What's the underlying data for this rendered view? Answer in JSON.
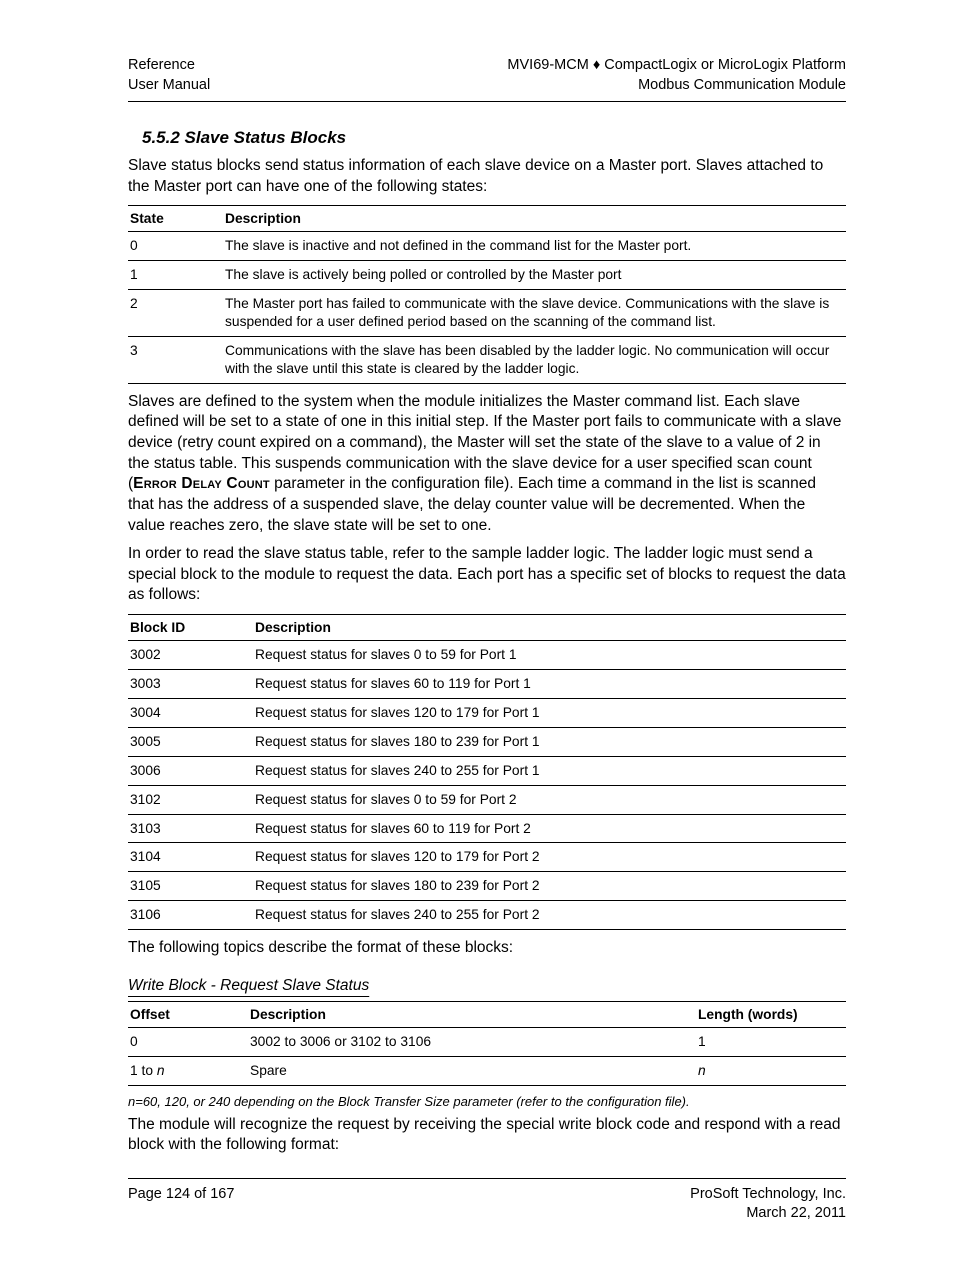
{
  "header": {
    "left_line1": "Reference",
    "left_line2": "User Manual",
    "right_line1": "MVI69-MCM ♦ CompactLogix or MicroLogix Platform",
    "right_line2": "Modbus Communication Module"
  },
  "section_title": "5.5.2  Slave Status Blocks",
  "intro": "Slave status blocks send status information of each slave device on a Master port. Slaves attached to the Master port can have one of the following states:",
  "state_table": {
    "columns": [
      "State",
      "Description"
    ],
    "rows": [
      [
        "0",
        "The slave is inactive and not defined in the command list for the Master port."
      ],
      [
        "1",
        "The slave is actively being polled or controlled by the Master port"
      ],
      [
        "2",
        "The Master port has failed to communicate with the slave device. Communications with the slave is suspended for a user defined period based on the scanning of the command list."
      ],
      [
        "3",
        "Communications with the slave has been disabled by the ladder logic. No communication will occur with the slave until this state is cleared by the ladder logic."
      ]
    ]
  },
  "para1_pre": "Slaves are defined to the system when the module initializes the Master command list. Each slave defined will be set to a state of one in this initial step. If the Master port fails to communicate with a slave device (retry count expired on a command), the Master will set the state of the slave to a value of 2 in the status table. This suspends communication with the slave device for a user specified scan count (",
  "para1_caps": "Error Delay Count",
  "para1_post": " parameter in the configuration file). Each time a command in the list is scanned that has the address of a suspended slave, the delay counter value will be decremented. When the value reaches zero, the slave state will be set to one.",
  "para2": "In order to read the slave status table, refer to the sample ladder logic. The ladder logic must send a special block to the module to request the data. Each port has a specific set of blocks to request the data as follows:",
  "block_table": {
    "columns": [
      "Block ID",
      "Description"
    ],
    "rows": [
      [
        "3002",
        "Request status for slaves 0 to 59 for Port 1"
      ],
      [
        "3003",
        "Request status for slaves 60 to 119 for Port 1"
      ],
      [
        "3004",
        "Request status for slaves 120 to 179 for Port 1"
      ],
      [
        "3005",
        "Request status for slaves 180 to 239 for Port 1"
      ],
      [
        "3006",
        "Request status for slaves 240 to 255 for Port 1"
      ],
      [
        "3102",
        "Request status for slaves 0 to 59 for Port 2"
      ],
      [
        "3103",
        "Request status for slaves 60 to 119 for Port 2"
      ],
      [
        "3104",
        "Request status for slaves 120 to 179 for Port 2"
      ],
      [
        "3105",
        "Request status for slaves 180 to 239 for Port 2"
      ],
      [
        "3106",
        "Request status for slaves 240 to 255 for Port 2"
      ]
    ]
  },
  "para3": "The following topics describe the format of these blocks:",
  "sub_heading": "Write Block - Request Slave Status",
  "offset_table": {
    "columns": [
      "Offset",
      "Description",
      "Length (words)"
    ],
    "rows": [
      [
        "0",
        "3002 to 3006 or 3102 to 3106",
        "1"
      ],
      [
        "1 to n",
        "Spare",
        "n"
      ]
    ]
  },
  "footnote": "n=60, 120, or 240 depending on the Block Transfer Size parameter (refer to the configuration file).",
  "para4": "The module will recognize the request by receiving the special write block code and respond with a read block with the following format:",
  "footer": {
    "left": "Page 124 of 167",
    "right_line1": "ProSoft Technology, Inc.",
    "right_line2": "March 22, 2011"
  }
}
